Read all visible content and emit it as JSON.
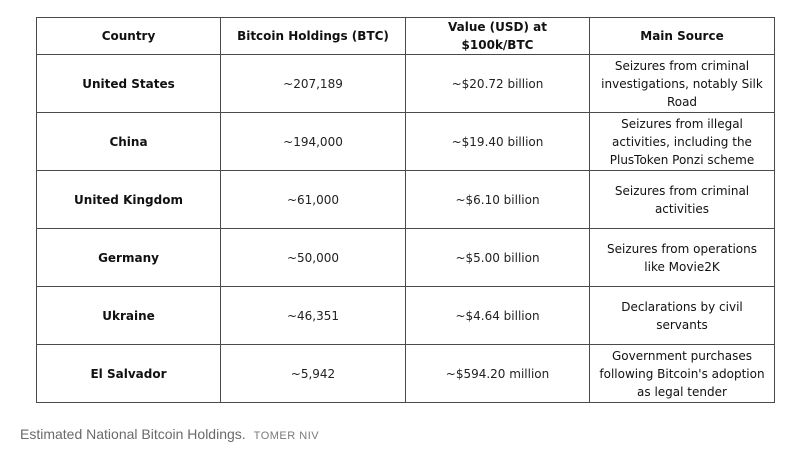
{
  "table": {
    "headers": {
      "country": "Country",
      "btc": "Bitcoin Holdings (BTC)",
      "usd": "Value (USD) at $100k/BTC",
      "source": "Main Source"
    },
    "rows": [
      {
        "country": "United States",
        "btc": "~207,189",
        "usd": "~$20.72 billion",
        "source": "Seizures from criminal investigations, notably Silk Road"
      },
      {
        "country": "China",
        "btc": "~194,000",
        "usd": "~$19.40 billion",
        "source": "Seizures from illegal activities, including the PlusToken Ponzi scheme"
      },
      {
        "country": "United Kingdom",
        "btc": "~61,000",
        "usd": "~$6.10 billion",
        "source": "Seizures from criminal activities"
      },
      {
        "country": "Germany",
        "btc": "~50,000",
        "usd": "~$5.00 billion",
        "source": "Seizures from operations like Movie2K"
      },
      {
        "country": "Ukraine",
        "btc": "~46,351",
        "usd": "~$4.64 billion",
        "source": "Declarations by civil servants"
      },
      {
        "country": "El Salvador",
        "btc": "~5,942",
        "usd": "~$594.20 million",
        "source": "Government purchases following Bitcoin's adoption as legal tender"
      }
    ]
  },
  "caption": {
    "text": "Estimated National Bitcoin Holdings.",
    "credit": "TOMER NIV"
  }
}
